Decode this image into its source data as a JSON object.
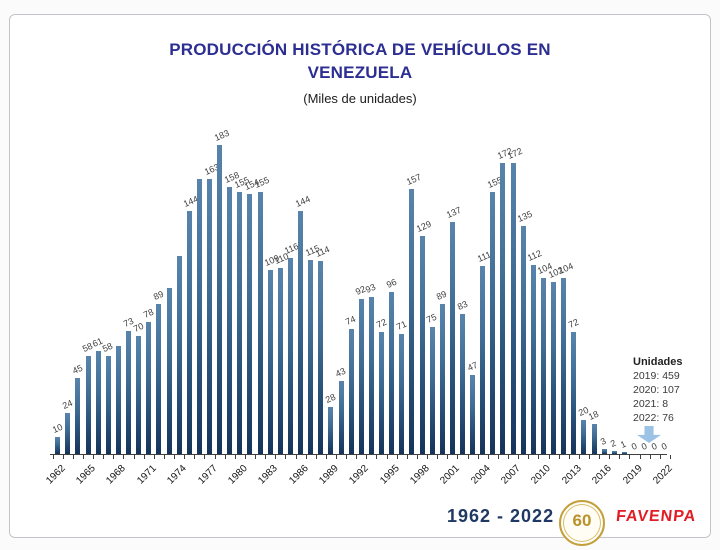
{
  "page": {
    "title_line1": "PRODUCCIÓN HISTÓRICA DE VEHÍCULOS EN",
    "title_line2": "VENEZUELA",
    "subtitle": "(Miles de unidades)"
  },
  "chart_data": {
    "type": "bar",
    "title": "PRODUCCIÓN HISTÓRICA DE VEHÍCULOS EN VENEZUELA",
    "subtitle": "(Miles de unidades)",
    "ylabel": "",
    "xlabel": "",
    "ylim": [
      0,
      190
    ],
    "grid": "off",
    "legend": "none",
    "years": [
      1962,
      1963,
      1964,
      1965,
      1966,
      1967,
      1968,
      1969,
      1970,
      1971,
      1972,
      1973,
      1974,
      1975,
      1976,
      1977,
      1978,
      1979,
      1980,
      1981,
      1982,
      1983,
      1984,
      1985,
      1986,
      1987,
      1988,
      1989,
      1990,
      1991,
      1992,
      1993,
      1994,
      1995,
      1996,
      1997,
      1998,
      1999,
      2000,
      2001,
      2002,
      2003,
      2004,
      2005,
      2006,
      2007,
      2008,
      2009,
      2010,
      2011,
      2012,
      2013,
      2014,
      2015,
      2016,
      2017,
      2018,
      2019,
      2020,
      2021,
      2022
    ],
    "values": [
      10,
      24,
      45,
      58,
      61,
      58,
      64,
      73,
      70,
      78,
      89,
      98,
      117,
      144,
      163,
      163,
      183,
      158,
      155,
      154,
      155,
      109,
      110,
      116,
      144,
      115,
      114,
      28,
      43,
      74,
      92,
      93,
      72,
      96,
      71,
      157,
      129,
      75,
      89,
      137,
      83,
      47,
      111,
      155,
      172,
      172,
      135,
      112,
      104,
      102,
      104,
      72,
      20,
      18,
      3,
      2,
      1,
      0,
      0,
      0,
      0
    ],
    "bar_labels": [
      "10",
      "24",
      "45",
      "58",
      "61",
      "58",
      "",
      "73",
      "70",
      "78",
      "89",
      "",
      "",
      "144",
      "",
      "163",
      "183",
      "158",
      "155",
      "154",
      "155",
      "109",
      "110",
      "116",
      "144",
      "115",
      "114",
      "28",
      "43",
      "74",
      "92",
      "93",
      "72",
      "96",
      "71",
      "157",
      "129",
      "75",
      "89",
      "137",
      "83",
      "47",
      "111",
      "155",
      "172",
      "172",
      "135",
      "112",
      "104",
      "102",
      "104",
      "72",
      "20",
      "18",
      "3",
      "2",
      "1",
      "0",
      "0",
      "0",
      "0"
    ],
    "x_tick_years": [
      1962,
      1965,
      1968,
      1971,
      1974,
      1977,
      1980,
      1983,
      1986,
      1989,
      1992,
      1995,
      1998,
      2001,
      2004,
      2007,
      2010,
      2013,
      2016,
      2019,
      2022
    ],
    "bar_color_top": "#5884ac",
    "bar_color_bottom": "#16345a"
  },
  "annotation": {
    "title": "Unidades",
    "lines": [
      "2019: 459",
      "2020: 107",
      "2021: 8",
      "2022: 76"
    ],
    "arrow_color": "#9cc2e5"
  },
  "footer": {
    "range_label": "1962 - 2022",
    "badge_number": "60",
    "logo_text": "FAVENPA"
  },
  "colors": {
    "title": "#2c2e91",
    "footer_text": "#1f3864",
    "logo_red": "#e21d25",
    "badge_gold": "#b8922a",
    "axis": "#3f3f3f"
  }
}
